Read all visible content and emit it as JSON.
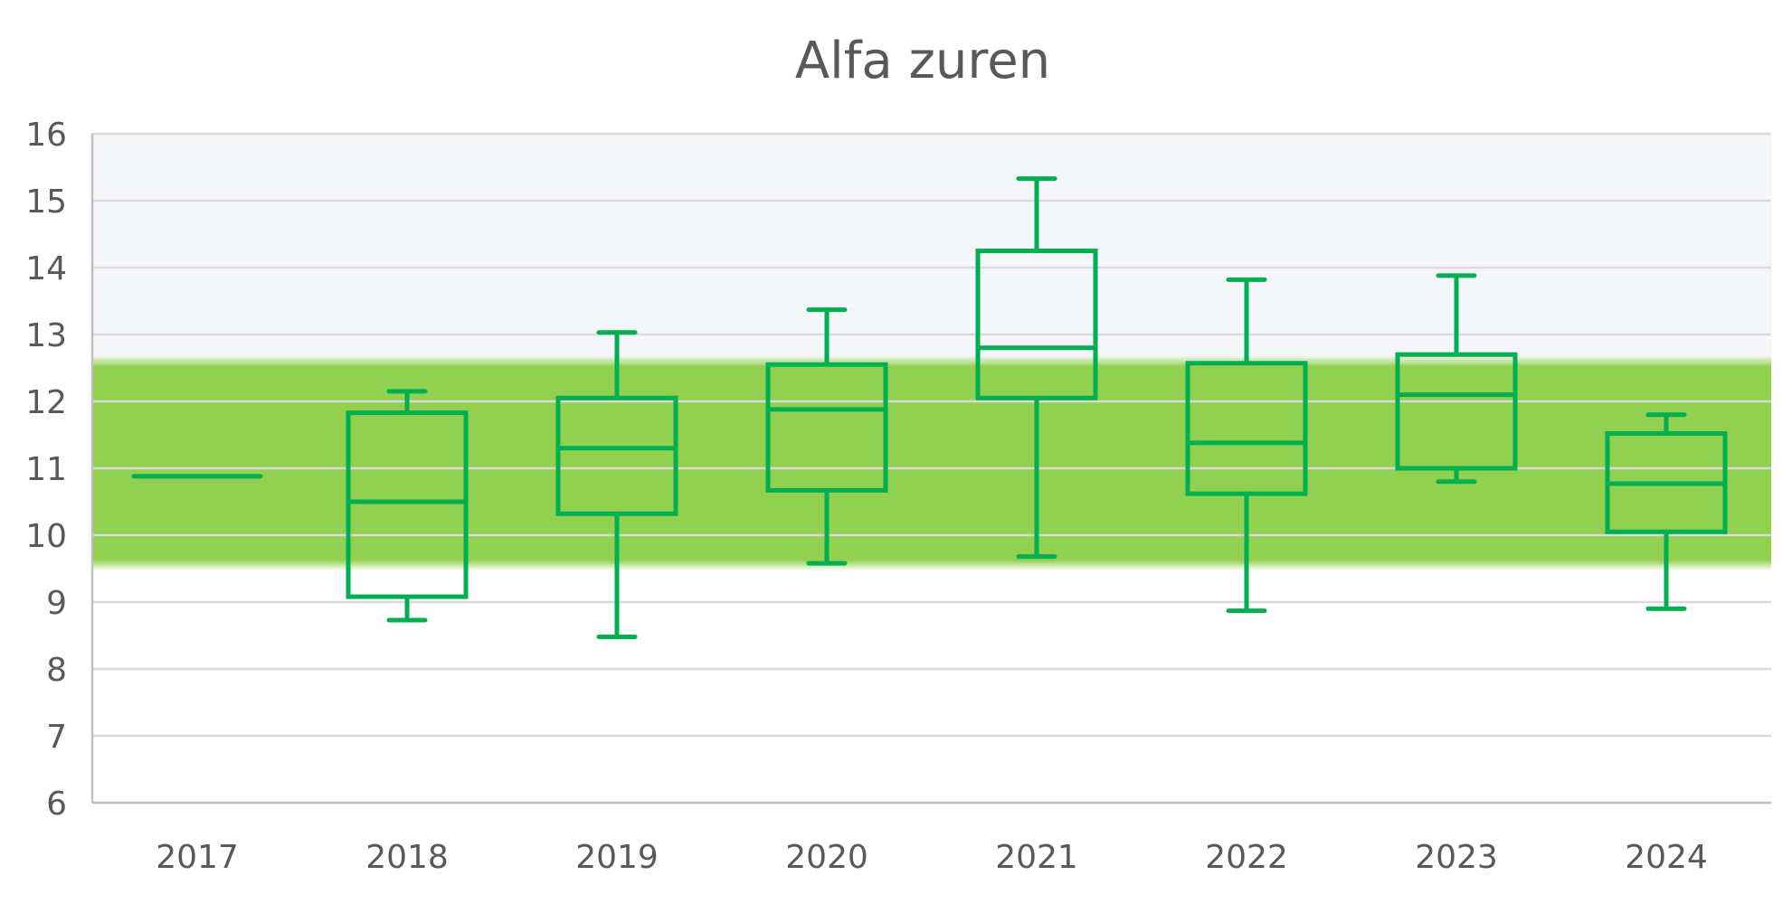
{
  "chart_data": {
    "type": "box",
    "title": "Alfa zuren",
    "xlabel": "",
    "ylabel": "",
    "ylim": [
      6,
      16
    ],
    "yticks": [
      "6",
      "7",
      "8",
      "9",
      "10",
      "11",
      "12",
      "13",
      "14",
      "15",
      "16"
    ],
    "grid": true,
    "legend": "none",
    "categories": [
      "2017",
      "2018",
      "2019",
      "2020",
      "2021",
      "2022",
      "2023",
      "2024"
    ],
    "boxes": [
      {
        "category": "2017",
        "min": 10.88,
        "q1": 10.88,
        "median": 10.88,
        "q3": 10.88,
        "max": 10.88
      },
      {
        "category": "2018",
        "min": 8.73,
        "q1": 9.08,
        "median": 10.5,
        "q3": 11.83,
        "max": 12.15
      },
      {
        "category": "2019",
        "min": 8.48,
        "q1": 10.32,
        "median": 11.3,
        "q3": 12.05,
        "max": 13.03
      },
      {
        "category": "2020",
        "min": 9.58,
        "q1": 10.67,
        "median": 11.88,
        "q3": 12.55,
        "max": 13.37
      },
      {
        "category": "2021",
        "min": 9.68,
        "q1": 12.05,
        "median": 12.8,
        "q3": 14.25,
        "max": 15.33
      },
      {
        "category": "2022",
        "min": 8.87,
        "q1": 10.62,
        "median": 11.38,
        "q3": 12.57,
        "max": 13.82
      },
      {
        "category": "2023",
        "min": 10.8,
        "q1": 11.0,
        "median": 12.1,
        "q3": 12.7,
        "max": 13.88
      },
      {
        "category": "2024",
        "min": 8.9,
        "q1": 10.05,
        "median": 10.77,
        "q3": 11.52,
        "max": 11.8
      }
    ],
    "reference_band": {
      "from": 9.55,
      "to": 12.6,
      "color": "#92d050"
    },
    "upper_shade": {
      "from": 12.6,
      "to": 16,
      "color": "#f5f6fa"
    },
    "colors": {
      "box": "#00b050",
      "grid": "#d9d9d9",
      "axis": "#bfbfbf",
      "text": "#595959"
    }
  }
}
